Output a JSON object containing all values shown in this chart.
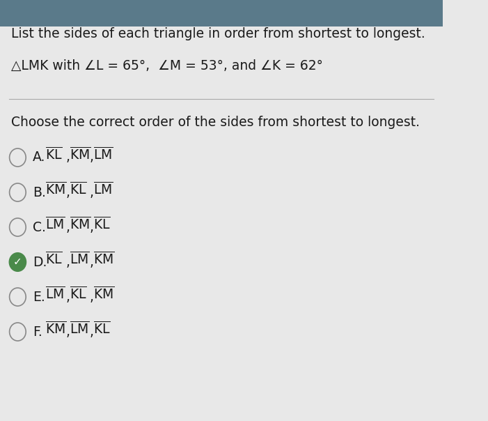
{
  "background_top": "#5a7a8a",
  "background_main": "#e8e8e8",
  "title_text": "List the sides of each triangle in order from shortest to longest.",
  "triangle_text": "△LMK with ∠L = 65°,  ∠M = 53°, and ∠K = 62°",
  "question_text": "Choose the correct order of the sides from shortest to longest.",
  "options": [
    {
      "label": "A.",
      "parts": [
        "KL",
        "KM",
        "LM"
      ],
      "selected": false
    },
    {
      "label": "B.",
      "parts": [
        "KM",
        "KL",
        "LM"
      ],
      "selected": false
    },
    {
      "label": "C.",
      "parts": [
        "LM",
        "KM",
        "KL"
      ],
      "selected": false
    },
    {
      "label": "D.",
      "parts": [
        "KL",
        "LM",
        "KM"
      ],
      "selected": true
    },
    {
      "label": "E.",
      "parts": [
        "LM",
        "KL",
        "KM"
      ],
      "selected": false
    },
    {
      "label": "F.",
      "parts": [
        "KM",
        "LM",
        "KL"
      ],
      "selected": false
    }
  ],
  "font_color": "#1a1a1a",
  "divider_color": "#aaaaaa",
  "selected_color": "#4a8a4a",
  "circle_color": "#888888",
  "title_fontsize": 13.5,
  "body_fontsize": 13.5,
  "option_fontsize": 13.5
}
